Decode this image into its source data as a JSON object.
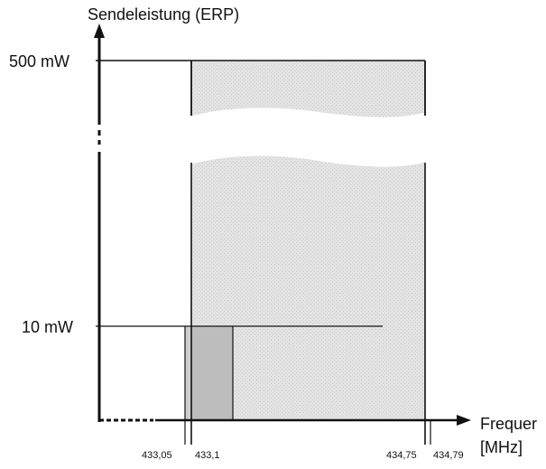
{
  "diagram": {
    "y_axis_label": "Sendeleistung (ERP)",
    "x_axis_label_line1": "Frequer",
    "x_axis_label_line2": "[MHz]",
    "y_ticks": {
      "high": "500 mW",
      "low": "10 mW"
    },
    "x_ticks": {
      "a": "433,05",
      "b": "433,1",
      "c": "434,75",
      "d": "434,79"
    },
    "colors": {
      "line": "#111111",
      "wide_band_fill": "#e2e2e2",
      "narrow_band_fill": "#bdbdbd",
      "background": "#ffffff"
    }
  }
}
